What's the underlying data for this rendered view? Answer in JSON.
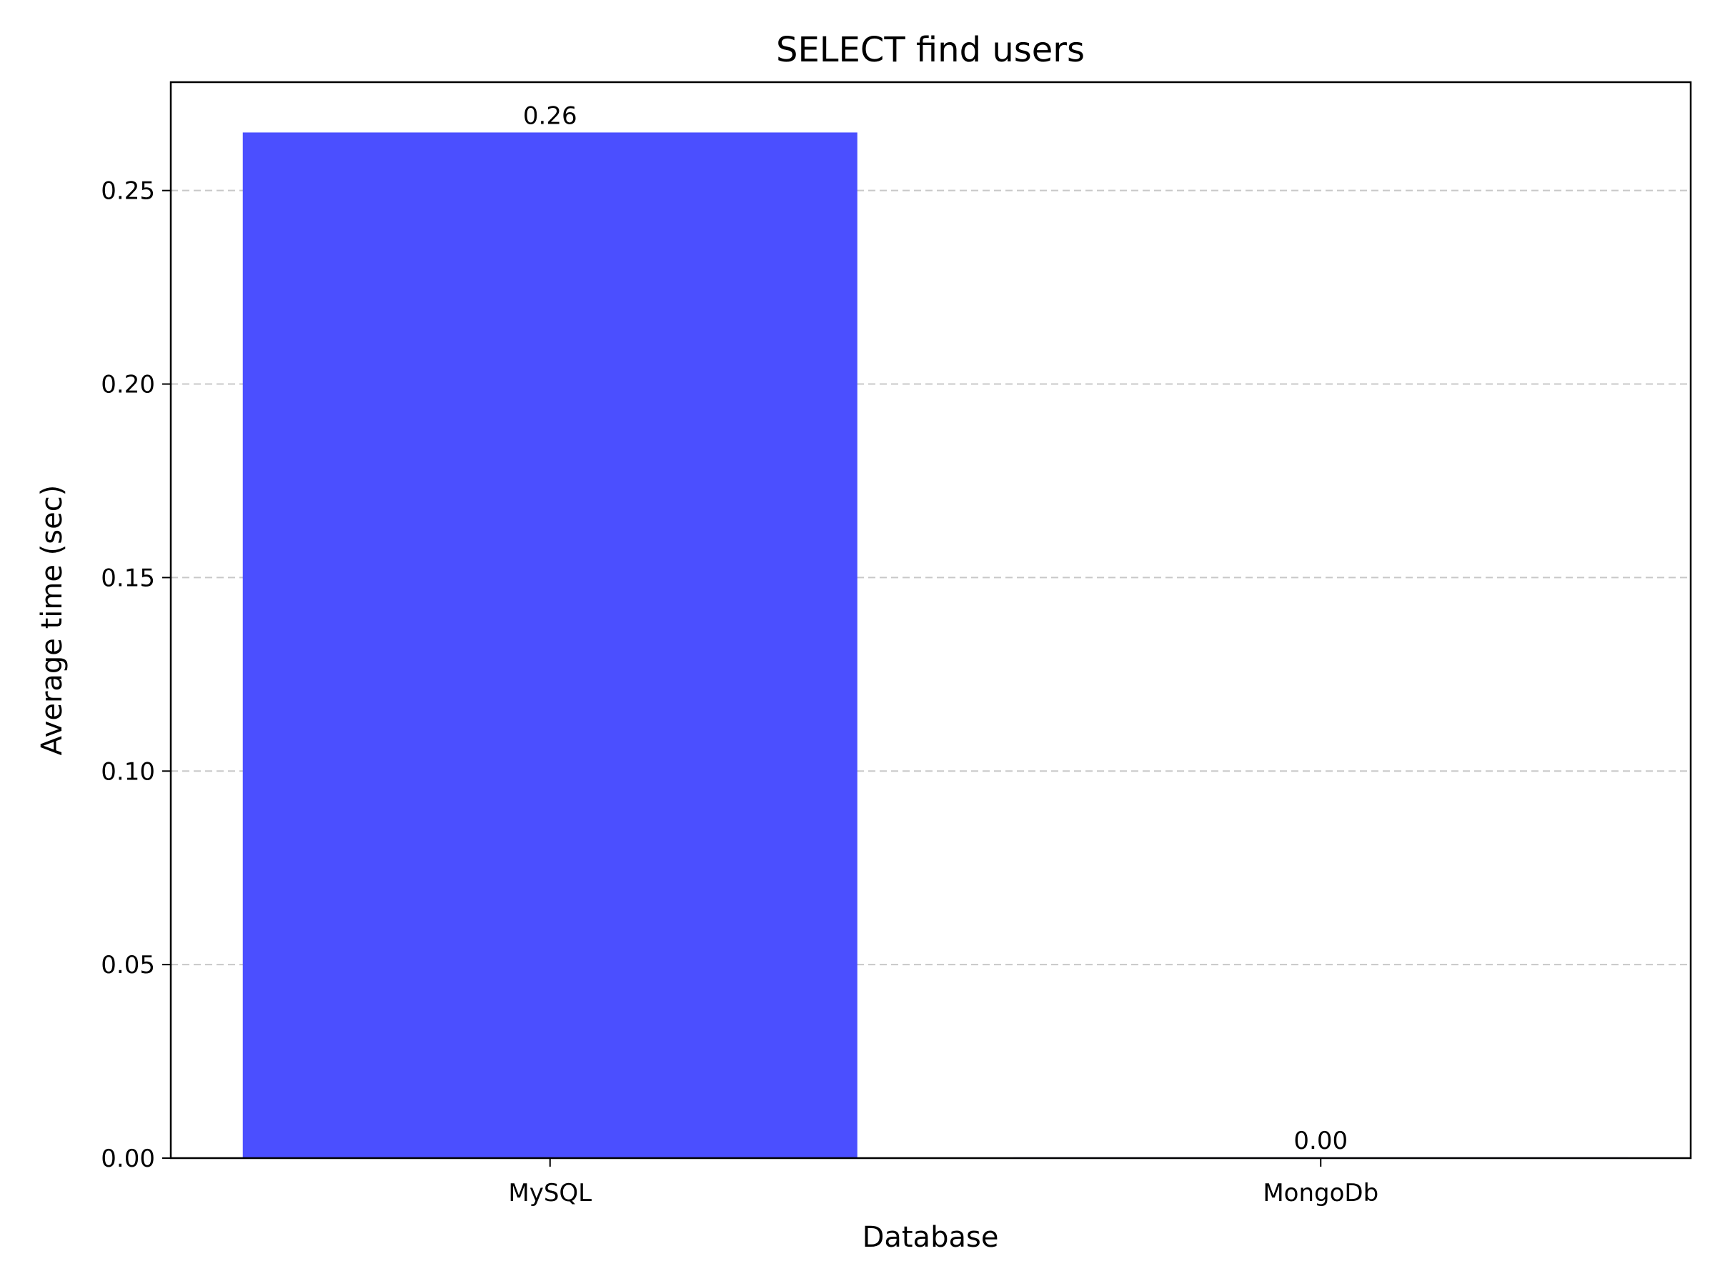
{
  "chart_data": {
    "type": "bar",
    "title": "SELECT find users",
    "xlabel": "Database",
    "ylabel": "Average time (sec)",
    "categories": [
      "MySQL",
      "MongoDb"
    ],
    "values": [
      0.265,
      0.0002
    ],
    "value_labels": [
      "0.26",
      "0.00"
    ],
    "ylim": [
      0,
      0.278
    ],
    "yticks": [
      0,
      0.05,
      0.1,
      0.15,
      0.2,
      0.25
    ],
    "ytick_labels": [
      "0.00",
      "0.05",
      "0.10",
      "0.15",
      "0.20",
      "0.25"
    ],
    "grid": "horizontal dashed",
    "bar_color": "#4b4fff",
    "grid_color": "#c8c8c8"
  }
}
